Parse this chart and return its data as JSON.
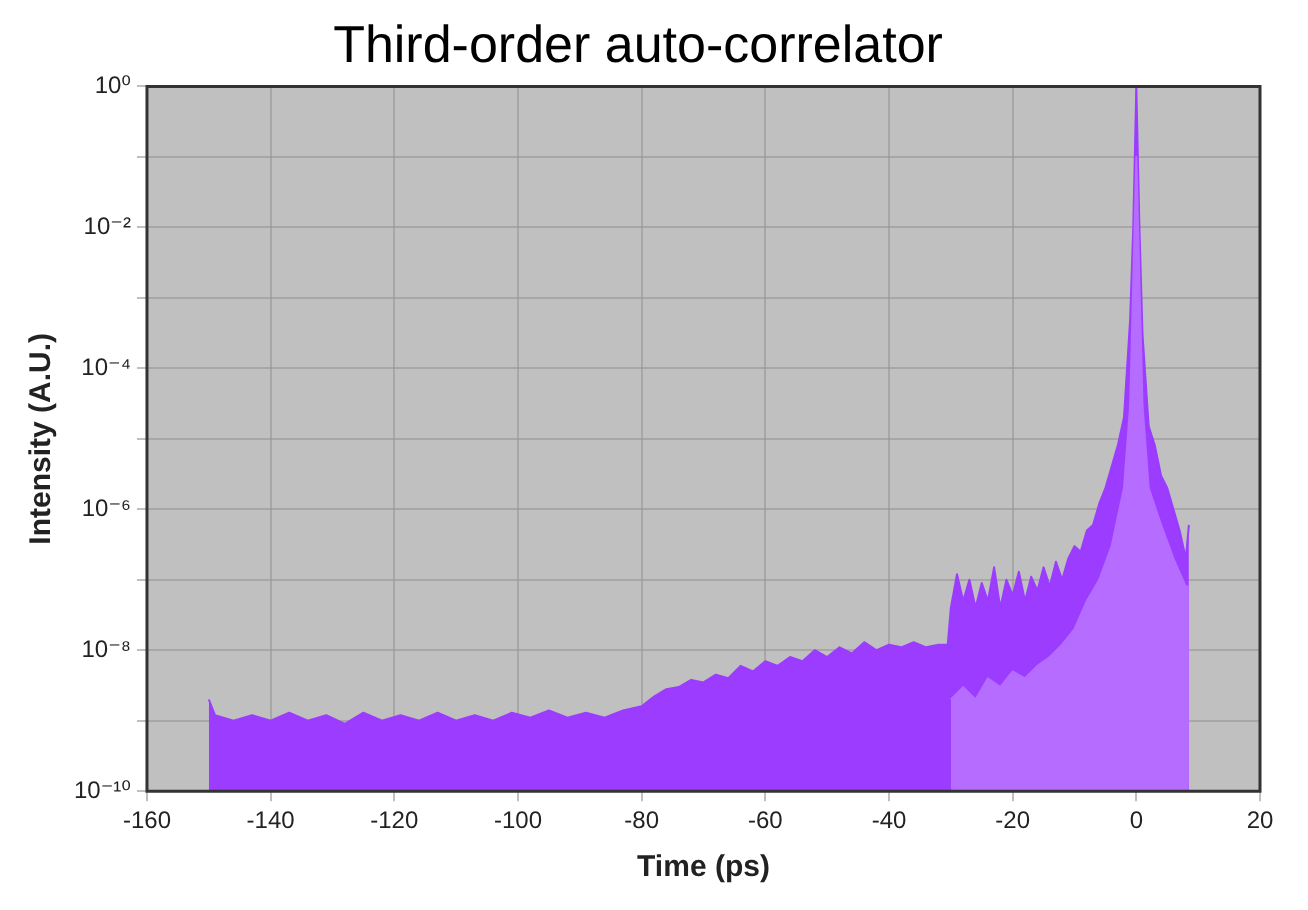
{
  "chart_data": {
    "type": "area",
    "title": "Third-order auto-correlator",
    "xlabel": "Time (ps)",
    "ylabel": "Intensity (A.U.)",
    "log": "y",
    "grid": true,
    "legend": false,
    "xlim": [
      -160,
      20
    ],
    "xticks": [
      -160,
      -140,
      -120,
      -100,
      -80,
      -60,
      -40,
      -20,
      0,
      20
    ],
    "ylim": [
      1e-10,
      1
    ],
    "yticks": [
      {
        "value": 1e-10,
        "label": "10⁻¹⁰"
      },
      {
        "value": 1e-09,
        "label": null
      },
      {
        "value": 1e-08,
        "label": "10⁻⁸"
      },
      {
        "value": 1e-07,
        "label": null
      },
      {
        "value": 1e-06,
        "label": "10⁻⁶"
      },
      {
        "value": 1e-05,
        "label": null
      },
      {
        "value": 0.0001,
        "label": "10⁻⁴"
      },
      {
        "value": 0.001,
        "label": null
      },
      {
        "value": 0.01,
        "label": "10⁻²"
      },
      {
        "value": 0.1,
        "label": null
      },
      {
        "value": 1,
        "label": "10⁰"
      }
    ],
    "series": [
      {
        "color": "#9b3cff",
        "x": [
          -150,
          -149,
          -146,
          -143,
          -140,
          -137,
          -134,
          -131,
          -128,
          -125,
          -122,
          -119,
          -116,
          -113,
          -110,
          -107,
          -104,
          -101,
          -98,
          -95,
          -92,
          -89,
          -86,
          -83,
          -80,
          -78,
          -76,
          -74,
          -72,
          -70,
          -68,
          -66,
          -64,
          -62,
          -60,
          -58,
          -56,
          -54,
          -52,
          -50,
          -48,
          -46,
          -44,
          -42,
          -40,
          -38,
          -36,
          -34,
          -32,
          -30.5,
          -30,
          -29,
          -28,
          -27,
          -26,
          -25,
          -24,
          -23,
          -22,
          -21,
          -20,
          -19,
          -18,
          -17,
          -16,
          -15,
          -14,
          -13,
          -12,
          -11,
          -10,
          -9,
          -8,
          -7,
          -6,
          -5,
          -4,
          -3,
          -2,
          -1,
          -0.5,
          0,
          0.5,
          1,
          2,
          3,
          4,
          5,
          6,
          7,
          8,
          8.5
        ],
        "values": [
          2e-09,
          1.2e-09,
          1e-09,
          1.2e-09,
          1e-09,
          1.3e-09,
          1e-09,
          1.2e-09,
          9e-10,
          1.3e-09,
          1e-09,
          1.2e-09,
          1e-09,
          1.3e-09,
          1e-09,
          1.2e-09,
          1e-09,
          1.3e-09,
          1.1e-09,
          1.4e-09,
          1.1e-09,
          1.3e-09,
          1.1e-09,
          1.4e-09,
          1.6e-09,
          2.2e-09,
          2.8e-09,
          3e-09,
          3.8e-09,
          3.5e-09,
          4.5e-09,
          4e-09,
          6e-09,
          5e-09,
          7e-09,
          6e-09,
          8e-09,
          7e-09,
          1e-08,
          8e-09,
          1.1e-08,
          9e-09,
          1.3e-08,
          1e-08,
          1.2e-08,
          1.1e-08,
          1.3e-08,
          1.1e-08,
          1.2e-08,
          1.2e-08,
          4e-08,
          1.2e-07,
          5e-08,
          1e-07,
          4e-08,
          9e-08,
          5e-08,
          1.5e-07,
          4e-08,
          1e-07,
          6e-08,
          1.3e-07,
          5e-08,
          1.1e-07,
          7e-08,
          1.5e-07,
          8e-08,
          1.8e-07,
          1e-07,
          2e-07,
          3e-07,
          2.5e-07,
          5e-07,
          6e-07,
          1.2e-06,
          2e-06,
          4e-06,
          8e-06,
          2e-05,
          0.0005,
          0.01,
          1,
          0.01,
          0.0003,
          1.5e-05,
          8e-06,
          3e-06,
          2e-06,
          1e-06,
          5e-07,
          2e-07,
          6e-07
        ]
      },
      {
        "color": "#b56cff",
        "x": [
          -30,
          -28,
          -26,
          -24,
          -22,
          -20,
          -18,
          -16,
          -14,
          -12,
          -10,
          -8,
          -6,
          -4,
          -2,
          -1,
          0,
          1,
          2,
          4,
          6,
          8,
          8.5
        ],
        "values": [
          2e-09,
          3e-09,
          2e-09,
          4e-09,
          3e-09,
          5e-09,
          4e-09,
          6e-09,
          8e-09,
          1.2e-08,
          2e-08,
          5e-08,
          1e-07,
          3e-07,
          2e-06,
          3e-05,
          0.1,
          3e-05,
          2e-06,
          6e-07,
          2e-07,
          8e-08,
          8e-08
        ]
      }
    ]
  }
}
